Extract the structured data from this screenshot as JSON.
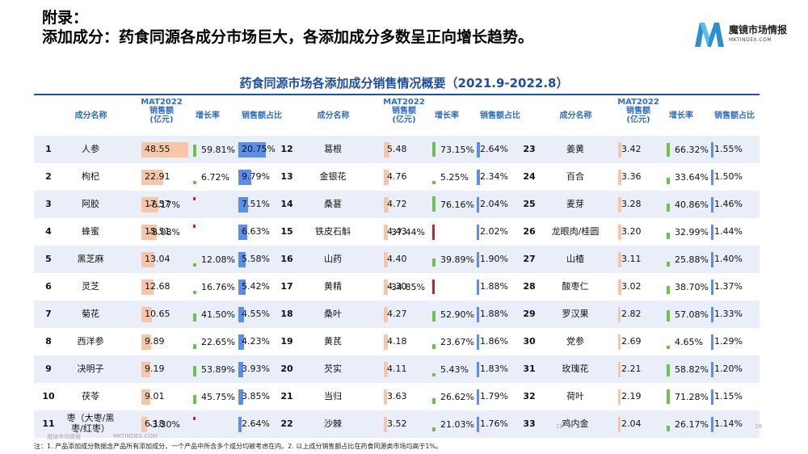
{
  "title": [
    "附录：",
    "添加成分：药食同源各成分市场巨大，各添加成分多数呈正向增长趋势。"
  ],
  "logo": {
    "text": "魔镜市场情报",
    "url": "MKTINDEX.COM"
  },
  "subtitle": "药食同源市场各添加成分销售情况概要（2021.9-2022.8）",
  "headers": {
    "name": "成分名称",
    "sales": [
      "MAT2022",
      "销售额",
      "(亿元)"
    ],
    "growth": "增长率",
    "share": "销售额占比"
  },
  "rows": [
    {
      "rank": "1",
      "name": [
        "人参"
      ],
      "sales": "48.55",
      "growth": "59.81%",
      "g": 59.81,
      "share": "20.75%",
      "s": 20.75
    },
    {
      "rank": "2",
      "name": [
        "枸杞"
      ],
      "sales": "22.91",
      "growth": "6.72%",
      "g": 6.72,
      "share": "9.79%",
      "s": 9.79
    },
    {
      "rank": "3",
      "name": [
        "阿胶"
      ],
      "sales": "17.57",
      "growth": "-6.17%",
      "g": -6.17,
      "share": "7.51%",
      "s": 7.51
    },
    {
      "rank": "4",
      "name": [
        "蜂蜜"
      ],
      "sales": "15.51",
      "growth": "-8.08%",
      "g": -8.08,
      "share": "6.63%",
      "s": 6.63
    },
    {
      "rank": "5",
      "name": [
        "黑芝麻"
      ],
      "sales": "13.04",
      "growth": "12.08%",
      "g": 12.08,
      "share": "5.58%",
      "s": 5.58
    },
    {
      "rank": "6",
      "name": [
        "灵芝"
      ],
      "sales": "12.68",
      "growth": "16.76%",
      "g": 16.76,
      "share": "5.42%",
      "s": 5.42
    },
    {
      "rank": "7",
      "name": [
        "菊花"
      ],
      "sales": "10.65",
      "growth": "41.50%",
      "g": 41.5,
      "share": "4.55%",
      "s": 4.55
    },
    {
      "rank": "8",
      "name": [
        "西洋参"
      ],
      "sales": "9.89",
      "growth": "22.65%",
      "g": 22.65,
      "share": "4.23%",
      "s": 4.23
    },
    {
      "rank": "9",
      "name": [
        "决明子"
      ],
      "sales": "9.19",
      "growth": "53.89%",
      "g": 53.89,
      "share": "3.93%",
      "s": 3.93
    },
    {
      "rank": "10",
      "name": [
        "茯苓"
      ],
      "sales": "9.01",
      "growth": "45.75%",
      "g": 45.75,
      "share": "3.85%",
      "s": 3.85
    },
    {
      "rank": "11",
      "name": [
        "枣（大枣/黑",
        "枣/红枣）"
      ],
      "sales": "6.18",
      "growth": "-3.30%",
      "g": -3.3,
      "share": "2.64%",
      "s": 2.64
    },
    {
      "rank": "12",
      "name": [
        "葛根"
      ],
      "sales": "5.48",
      "growth": "73.15%",
      "g": 73.15,
      "share": "2.64%",
      "s": 2.64
    },
    {
      "rank": "13",
      "name": [
        "金银花"
      ],
      "sales": "4.76",
      "growth": "5.25%",
      "g": 5.25,
      "share": "2.34%",
      "s": 2.34
    },
    {
      "rank": "14",
      "name": [
        "桑葚"
      ],
      "sales": "4.72",
      "growth": "76.16%",
      "g": 76.16,
      "share": "2.04%",
      "s": 2.04
    },
    {
      "rank": "15",
      "name": [
        "铁皮石斛"
      ],
      "sales": "4.43",
      "growth": "-37.44%",
      "g": -37.44,
      "share": "2.02%",
      "s": 2.02
    },
    {
      "rank": "16",
      "name": [
        "山药"
      ],
      "sales": "4.40",
      "growth": "39.89%",
      "g": 39.89,
      "share": "1.90%",
      "s": 1.9
    },
    {
      "rank": "17",
      "name": [
        "黄精"
      ],
      "sales": "4.30",
      "growth": "-34.85%",
      "g": -34.85,
      "share": "1.88%",
      "s": 1.88
    },
    {
      "rank": "18",
      "name": [
        "桑叶"
      ],
      "sales": "4.27",
      "growth": "52.90%",
      "g": 52.9,
      "share": "1.88%",
      "s": 1.88
    },
    {
      "rank": "19",
      "name": [
        "黄芪"
      ],
      "sales": "4.18",
      "growth": "23.67%",
      "g": 23.67,
      "share": "1.86%",
      "s": 1.86
    },
    {
      "rank": "20",
      "name": [
        "芡实"
      ],
      "sales": "4.11",
      "growth": "5.43%",
      "g": 5.43,
      "share": "1.83%",
      "s": 1.83
    },
    {
      "rank": "21",
      "name": [
        "当归"
      ],
      "sales": "3.63",
      "growth": "26.62%",
      "g": 26.62,
      "share": "1.79%",
      "s": 1.79
    },
    {
      "rank": "22",
      "name": [
        "沙棘"
      ],
      "sales": "3.52",
      "growth": "21.03%",
      "g": 21.03,
      "share": "1.76%",
      "s": 1.76
    },
    {
      "rank": "23",
      "name": [
        "姜黄"
      ],
      "sales": "3.42",
      "growth": "66.32%",
      "g": 66.32,
      "share": "1.55%",
      "s": 1.55
    },
    {
      "rank": "24",
      "name": [
        "百合"
      ],
      "sales": "3.36",
      "growth": "33.64%",
      "g": 33.64,
      "share": "1.50%",
      "s": 1.5
    },
    {
      "rank": "25",
      "name": [
        "麦芽"
      ],
      "sales": "3.28",
      "growth": "40.86%",
      "g": 40.86,
      "share": "1.46%",
      "s": 1.46
    },
    {
      "rank": "26",
      "name": [
        "龙眼肉/桂圆"
      ],
      "sales": "3.20",
      "growth": "32.99%",
      "g": 32.99,
      "share": "1.44%",
      "s": 1.44
    },
    {
      "rank": "27",
      "name": [
        "山楂"
      ],
      "sales": "3.11",
      "growth": "25.88%",
      "g": 25.88,
      "share": "1.40%",
      "s": 1.4
    },
    {
      "rank": "28",
      "name": [
        "酸枣仁"
      ],
      "sales": "3.02",
      "growth": "38.70%",
      "g": 38.7,
      "share": "1.37%",
      "s": 1.37
    },
    {
      "rank": "29",
      "name": [
        "罗汉果"
      ],
      "sales": "2.82",
      "growth": "57.08%",
      "g": 57.08,
      "share": "1.33%",
      "s": 1.33
    },
    {
      "rank": "30",
      "name": [
        "党参"
      ],
      "sales": "2.69",
      "growth": "4.65%",
      "g": 4.65,
      "share": "1.29%",
      "s": 1.29
    },
    {
      "rank": "31",
      "name": [
        "玫瑰花"
      ],
      "sales": "2.21",
      "growth": "58.82%",
      "g": 58.82,
      "share": "1.20%",
      "s": 1.2
    },
    {
      "rank": "32",
      "name": [
        "荷叶"
      ],
      "sales": "2.19",
      "growth": "71.28%",
      "g": 71.28,
      "share": "1.15%",
      "s": 1.15
    },
    {
      "rank": "33",
      "name": [
        "鸡内金"
      ],
      "sales": "2.04",
      "growth": "26.17%",
      "g": 26.17,
      "share": "1.14%",
      "s": 1.14
    }
  ],
  "footnote": "注：1. 产品添加成分数据含产品所有添加成分，一个产品中所含多个成分均被考虑在内。2. 以上成分销售额占比在药食同源类市场均高于1%。",
  "watermarks": [
    "魔镜市场情报",
    "MKTINDEX.COM",
    "28",
    "28"
  ]
}
